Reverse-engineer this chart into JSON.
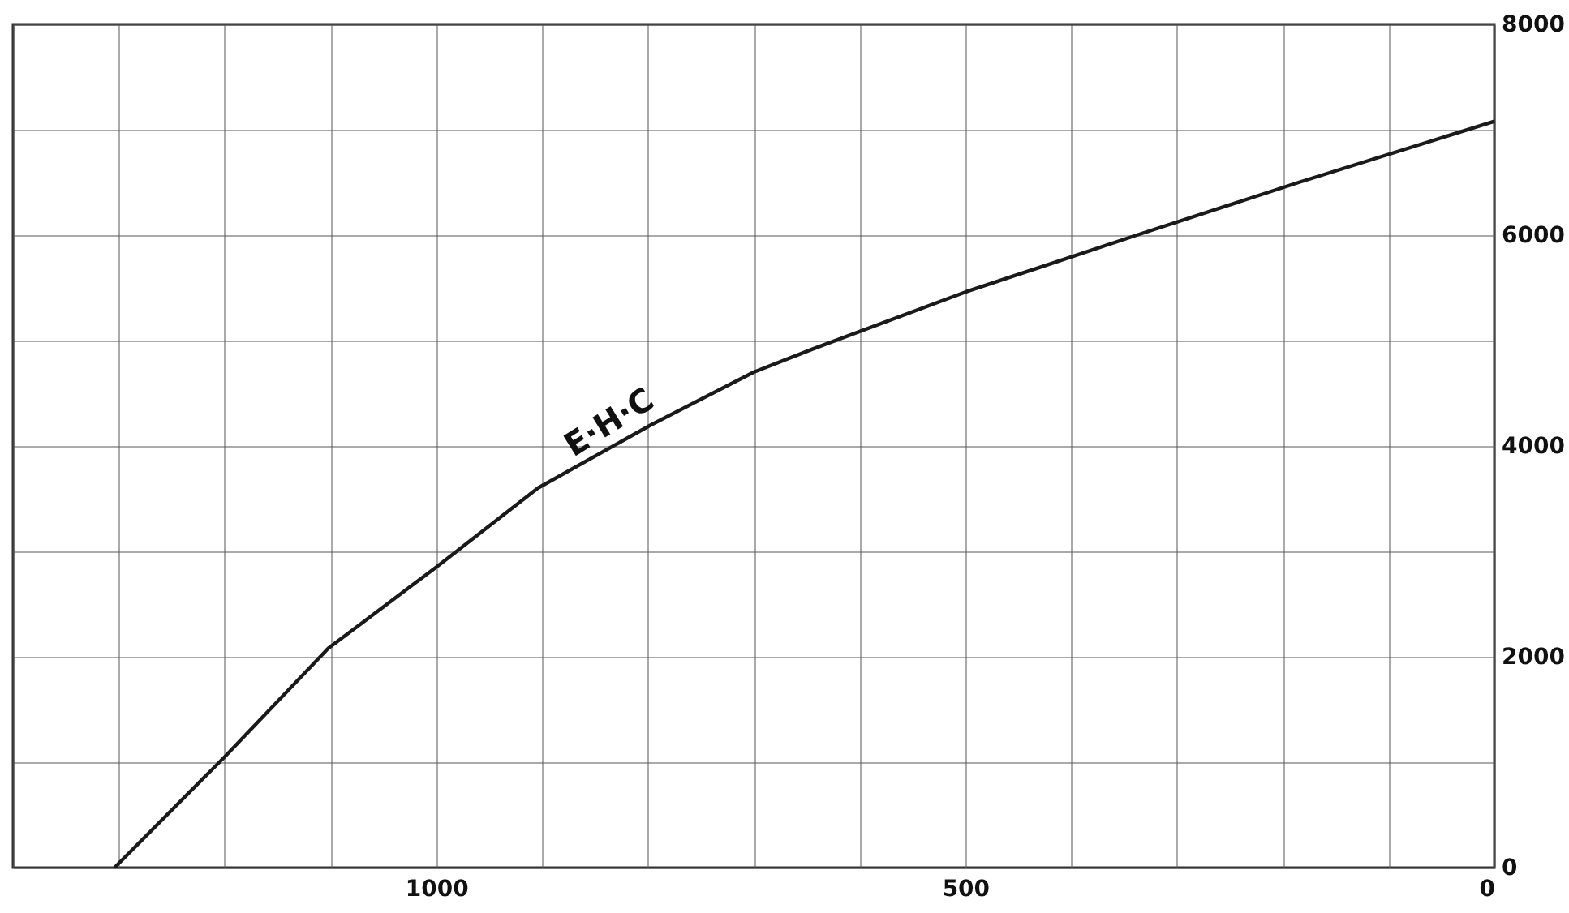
{
  "chart_data": {
    "type": "line",
    "x": [
      1304,
      1200,
      1102,
      1000,
      904,
      797,
      700,
      644,
      500,
      338,
      185,
      0
    ],
    "series": [
      {
        "color": "#1a1a1a",
        "values": [
          0,
          1050,
          2080,
          2850,
          3600,
          4200,
          4700,
          4920,
          5460,
          6000,
          6500,
          7080
        ]
      }
    ],
    "xlim": [
      1400,
      0
    ],
    "ylim": [
      0,
      8000
    ],
    "xticks": [
      {
        "value": 1400,
        "label": null
      },
      {
        "value": 1300,
        "label": null
      },
      {
        "value": 1200,
        "label": null
      },
      {
        "value": 1100,
        "label": null
      },
      1000,
      {
        "value": 900,
        "label": null
      },
      {
        "value": 800,
        "label": null
      },
      {
        "value": 700,
        "label": null
      },
      {
        "value": 600,
        "label": null
      },
      500,
      {
        "value": 400,
        "label": null
      },
      {
        "value": 300,
        "label": null
      },
      {
        "value": 200,
        "label": null
      },
      {
        "value": 100,
        "label": null
      },
      0
    ],
    "yticks": [
      0,
      {
        "value": 1000,
        "label": null
      },
      2000,
      {
        "value": 3000,
        "label": null
      },
      4000,
      {
        "value": 5000,
        "label": null
      },
      6000,
      {
        "value": 7000,
        "label": null
      },
      8000
    ],
    "grid": true,
    "marker": "none",
    "line_style": "solid",
    "annotations": [
      {
        "text": "E·H·C",
        "x": 830,
        "y": 4000
      }
    ]
  }
}
